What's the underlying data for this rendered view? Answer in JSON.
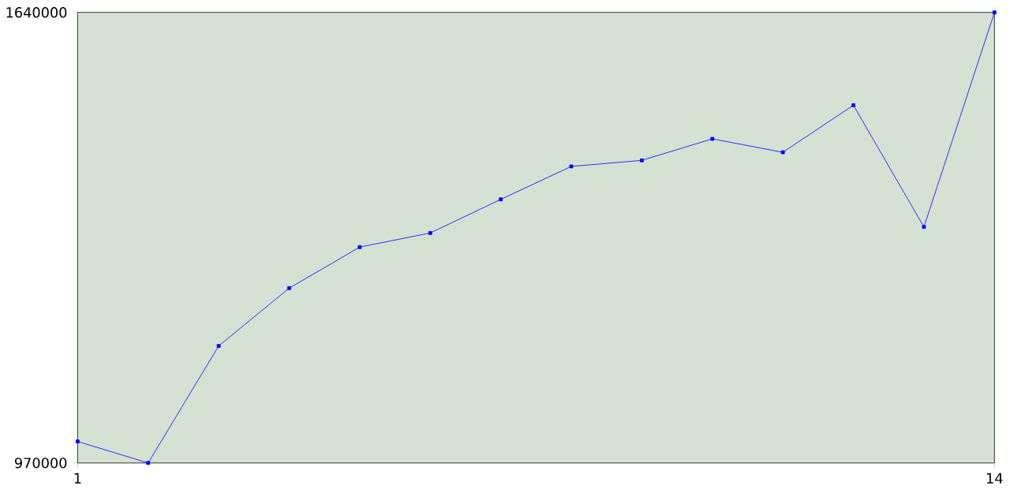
{
  "chart_data": {
    "type": "line",
    "x": [
      1,
      2,
      3,
      4,
      5,
      6,
      7,
      8,
      9,
      10,
      11,
      12,
      13,
      14
    ],
    "series": [
      {
        "color": "#0000ff",
        "values": [
          1002000,
          970000,
          1144000,
          1230000,
          1291000,
          1312000,
          1362000,
          1411000,
          1420000,
          1452000,
          1432000,
          1502000,
          1321000,
          1640000
        ]
      }
    ],
    "xlim": [
      1,
      14
    ],
    "ylim": [
      970000,
      1640000
    ],
    "xticks": [
      1,
      14
    ],
    "yticks": [
      970000,
      1640000
    ],
    "grid": false,
    "marker": "square",
    "line_style": "solid"
  }
}
